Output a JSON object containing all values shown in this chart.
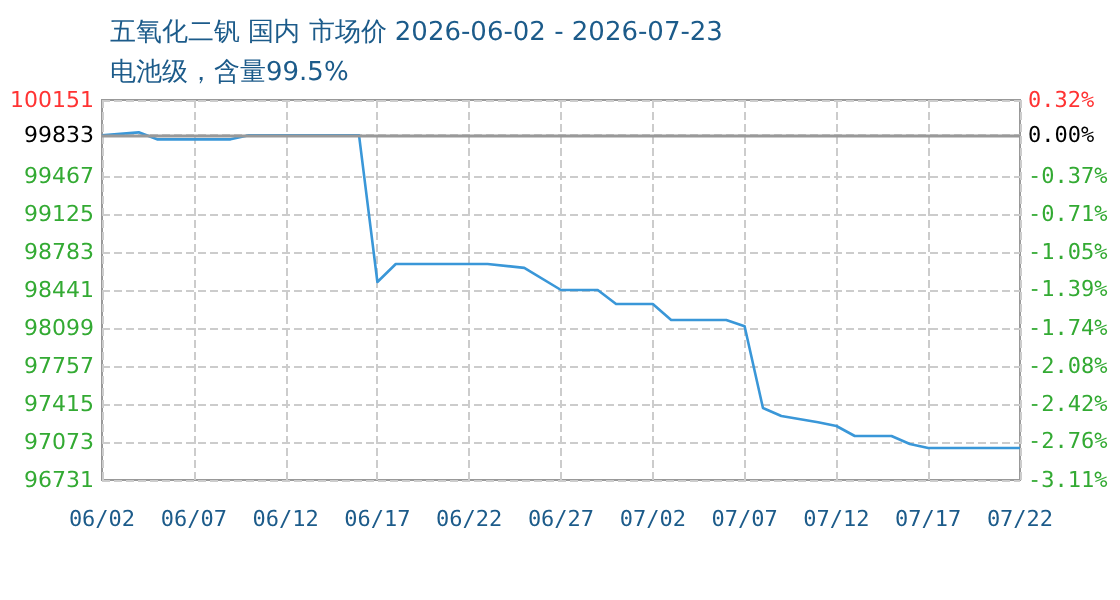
{
  "chart_data": {
    "type": "line",
    "title": "五氧化二钒 国内 市场价 2026-06-02 - 2026-07-23",
    "subtitle": "电池级，含量99.5%",
    "x": [
      "2026-06-02",
      "2026-06-04",
      "2026-06-05",
      "2026-06-09",
      "2026-06-10",
      "2026-06-16",
      "2026-06-17",
      "2026-06-18",
      "2026-06-23",
      "2026-06-25",
      "2026-06-27",
      "2026-06-29",
      "2026-06-30",
      "2026-07-02",
      "2026-07-03",
      "2026-07-06",
      "2026-07-07",
      "2026-07-08",
      "2026-07-09",
      "2026-07-11",
      "2026-07-12",
      "2026-07-13",
      "2026-07-15",
      "2026-07-16",
      "2026-07-17",
      "2026-07-22"
    ],
    "series": [
      {
        "color": "#3a97d8",
        "values": [
          99833,
          99860,
          99797,
          99797,
          99833,
          99833,
          98513,
          98675,
          98675,
          98640,
          98441,
          98441,
          98315,
          98315,
          98171,
          98171,
          98115,
          97379,
          97307,
          97250,
          97217,
          97127,
          97127,
          97055,
          97019,
          97019
        ]
      }
    ],
    "xlim": [
      "2026-06-02",
      "2026-07-22"
    ],
    "xticks": [
      {
        "value": "2026-06-02",
        "label": "06/02"
      },
      {
        "value": "2026-06-07",
        "label": "06/07"
      },
      {
        "value": "2026-06-12",
        "label": "06/12"
      },
      {
        "value": "2026-06-17",
        "label": "06/17"
      },
      {
        "value": "2026-06-22",
        "label": "06/22"
      },
      {
        "value": "2026-06-27",
        "label": "06/27"
      },
      {
        "value": "2026-07-02",
        "label": "07/02"
      },
      {
        "value": "2026-07-07",
        "label": "07/07"
      },
      {
        "value": "2026-07-12",
        "label": "07/12"
      },
      {
        "value": "2026-07-17",
        "label": "07/17"
      },
      {
        "value": "2026-07-22",
        "label": "07/22"
      }
    ],
    "ylim": [
      96731,
      100151
    ],
    "yticks": [
      96731,
      97073,
      97415,
      97757,
      98099,
      98441,
      98783,
      99125,
      99467,
      99833,
      100151
    ],
    "y2lim": [
      -3.11,
      0.32
    ],
    "y2ticks": [
      {
        "value": -3.11,
        "label": "-3.11%"
      },
      {
        "value": -2.76,
        "label": "-2.76%"
      },
      {
        "value": -2.42,
        "label": "-2.42%"
      },
      {
        "value": -2.08,
        "label": "-2.08%"
      },
      {
        "value": -1.74,
        "label": "-1.74%"
      },
      {
        "value": -1.39,
        "label": "-1.39%"
      },
      {
        "value": -1.05,
        "label": "-1.05%"
      },
      {
        "value": -0.71,
        "label": "-0.71%"
      },
      {
        "value": -0.37,
        "label": "-0.37%"
      },
      {
        "value": 0,
        "label": "0.00%"
      },
      {
        "value": 0.32,
        "label": "0.32%"
      }
    ],
    "ref_lines": [
      {
        "axis": "y2",
        "value": 0,
        "color": "#999999"
      }
    ],
    "grid": true,
    "marker": "none",
    "line_style": "solid"
  }
}
